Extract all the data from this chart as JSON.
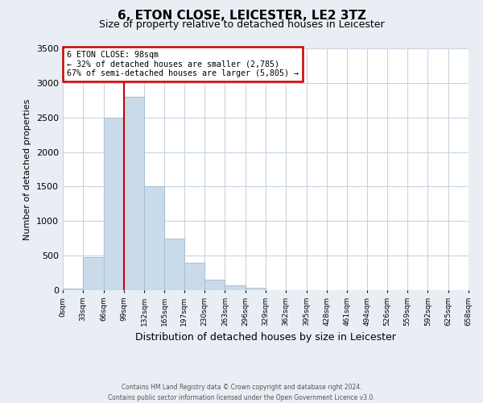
{
  "title": "6, ETON CLOSE, LEICESTER, LE2 3TZ",
  "subtitle": "Size of property relative to detached houses in Leicester",
  "xlabel": "Distribution of detached houses by size in Leicester",
  "ylabel": "Number of detached properties",
  "bin_edges": [
    0,
    33,
    66,
    99,
    132,
    165,
    197,
    230,
    263,
    296,
    329,
    362,
    395,
    428,
    461,
    494,
    526,
    559,
    592,
    625,
    658
  ],
  "bar_heights": [
    20,
    480,
    2500,
    2800,
    1500,
    750,
    400,
    150,
    70,
    40,
    0,
    0,
    0,
    0,
    0,
    0,
    0,
    0,
    0,
    0
  ],
  "bar_color": "#c9daea",
  "bar_edge_color": "#aabfcf",
  "vline_x": 99,
  "vline_color": "#cc0000",
  "ylim": [
    0,
    3500
  ],
  "yticks": [
    0,
    500,
    1000,
    1500,
    2000,
    2500,
    3000,
    3500
  ],
  "xtick_labels": [
    "0sqm",
    "33sqm",
    "66sqm",
    "99sqm",
    "132sqm",
    "165sqm",
    "197sqm",
    "230sqm",
    "263sqm",
    "296sqm",
    "329sqm",
    "362sqm",
    "395sqm",
    "428sqm",
    "461sqm",
    "494sqm",
    "526sqm",
    "559sqm",
    "592sqm",
    "625sqm",
    "658sqm"
  ],
  "annotation_title": "6 ETON CLOSE: 98sqm",
  "annotation_line1": "← 32% of detached houses are smaller (2,785)",
  "annotation_line2": "67% of semi-detached houses are larger (5,805) →",
  "annotation_box_color": "#ffffff",
  "annotation_box_edge_color": "#cc0000",
  "footnote1": "Contains HM Land Registry data © Crown copyright and database right 2024.",
  "footnote2": "Contains public sector information licensed under the Open Government Licence v3.0.",
  "bg_color": "#e8eef4",
  "plot_bg_color": "#ffffff",
  "grid_color": "#c8d4e0"
}
